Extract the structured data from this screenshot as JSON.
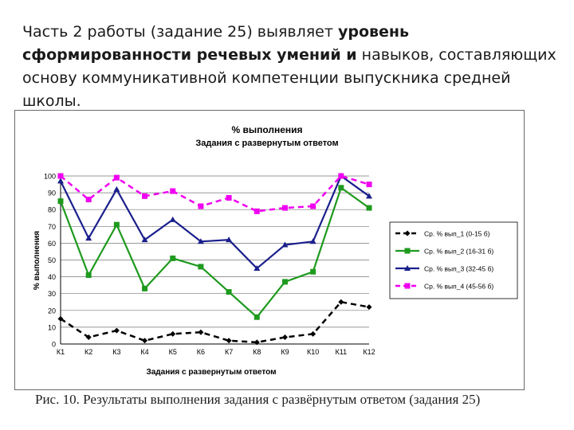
{
  "intro": {
    "part1": "Часть 2 работы (задание 25) выявляет ",
    "bold1": "уровень сформированности речевых умений и",
    "part2": " навыков, составляющих основу коммуникативной компетенции выпускника средней школы."
  },
  "caption": "Рис. 10. Результаты выполнения задания с развёрнутым ответом (задания 25)",
  "chart_data": {
    "type": "line",
    "title": "% выполнения",
    "subtitle": "Задания с развернутым ответом",
    "xlabel": "Задания с развернутым ответом",
    "ylabel": "% выполнения",
    "categories": [
      "К1",
      "К2",
      "К3",
      "К4",
      "К5",
      "К6",
      "К7",
      "К8",
      "К9",
      "К10",
      "К11",
      "К12"
    ],
    "ylim": [
      0,
      100
    ],
    "yticks": [
      0,
      10,
      20,
      30,
      40,
      50,
      60,
      70,
      80,
      90,
      100
    ],
    "grid": true,
    "legend_position": "right",
    "series": [
      {
        "name": "Ср. % вып_1 (0-15 б)",
        "color": "#000000",
        "marker": "diamond",
        "dashed": true,
        "values": [
          15,
          4,
          8,
          2,
          6,
          7,
          2,
          1,
          4,
          6,
          25,
          22
        ]
      },
      {
        "name": "Ср. % вып_2 (16-31 б)",
        "color": "#1e9a1e",
        "marker": "square",
        "dashed": false,
        "values": [
          85,
          41,
          71,
          33,
          51,
          46,
          31,
          16,
          37,
          43,
          93,
          81
        ]
      },
      {
        "name": "Ср. % вып_3 (32-45 б)",
        "color": "#1a1f8c",
        "marker": "triangle",
        "dashed": false,
        "values": [
          97,
          63,
          92,
          62,
          74,
          61,
          62,
          45,
          59,
          61,
          100,
          88
        ]
      },
      {
        "name": "Ср. % вып_4 (45-56 б)",
        "color": "#f000f0",
        "marker": "square",
        "dashed": true,
        "values": [
          100,
          86,
          99,
          88,
          91,
          82,
          87,
          79,
          81,
          82,
          100,
          95
        ]
      }
    ]
  }
}
